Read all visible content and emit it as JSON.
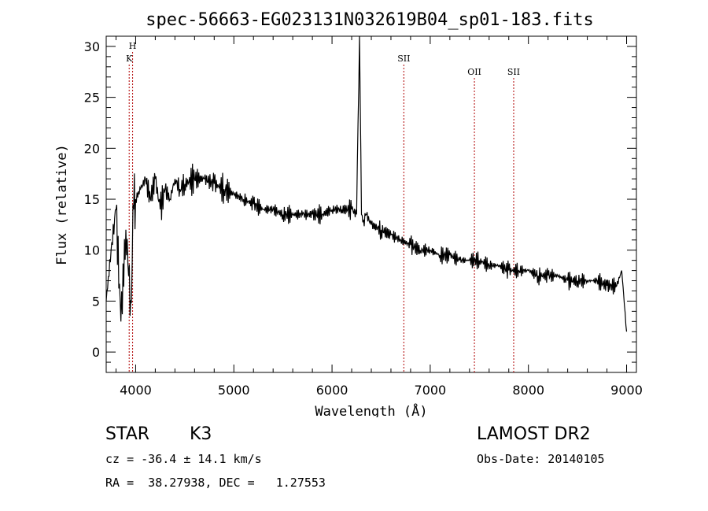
{
  "chart_data": {
    "type": "line",
    "title": "spec-56663-EG023131N032619B04_sp01-183.fits",
    "xlabel": "Wavelength (Å)",
    "ylabel": "Flux (relative)",
    "xlim": [
      3700,
      9100
    ],
    "ylim": [
      -2,
      31
    ],
    "xticks": [
      4000,
      5000,
      6000,
      7000,
      8000,
      9000
    ],
    "yticks": [
      0,
      5,
      10,
      15,
      20,
      25,
      30
    ],
    "grid": false,
    "series": [
      {
        "x": [
          3700,
          3750,
          3800,
          3850,
          3900,
          3950,
          3980,
          4000,
          4050,
          4100,
          4150,
          4200,
          4250,
          4300,
          4350,
          4400,
          4450,
          4500,
          4600,
          4700,
          4800,
          4900,
          5000,
          5100,
          5200,
          5300,
          5400,
          5500,
          5600,
          5700,
          5800,
          5900,
          6000,
          6100,
          6200,
          6250,
          6280,
          6300,
          6320,
          6350,
          6400,
          6500,
          6600,
          6700,
          6800,
          6900,
          7000,
          7100,
          7200,
          7300,
          7400,
          7500,
          7600,
          7700,
          7800,
          7900,
          8000,
          8100,
          8200,
          8300,
          8400,
          8500,
          8600,
          8700,
          8800,
          8900,
          8950,
          9000
        ],
        "y": [
          5,
          10,
          14,
          3,
          12,
          5,
          14,
          15,
          16,
          17,
          15,
          17,
          14,
          16,
          15,
          17,
          16,
          16.5,
          17,
          17,
          16.5,
          16,
          15.5,
          15,
          14.5,
          14,
          14,
          13.5,
          13.5,
          13.5,
          13.5,
          13.5,
          14,
          14,
          14,
          13.5,
          31,
          13.5,
          13,
          13.5,
          12.5,
          12,
          11.5,
          11,
          10.5,
          10,
          10,
          9.5,
          9.5,
          9,
          9,
          9,
          8.5,
          8.5,
          8,
          8,
          8,
          7.5,
          7.5,
          7.5,
          7,
          7,
          7,
          7,
          6.5,
          6.5,
          8,
          2
        ]
      }
    ],
    "lines": [
      {
        "label": "H",
        "x": 3969
      },
      {
        "label": "K",
        "x": 3934
      },
      {
        "label": "SII",
        "x": 6731
      },
      {
        "label": "OII",
        "x": 7450
      },
      {
        "label": "SII",
        "x": 7850
      }
    ]
  },
  "info": {
    "class_label": "STAR",
    "subclass": "K3",
    "survey": "LAMOST DR2",
    "cz": "cz = -36.4 ± 14.1 km/s",
    "obs_date": "Obs-Date: 20140105",
    "coords": "RA =  38.27938, DEC =   1.27553"
  }
}
